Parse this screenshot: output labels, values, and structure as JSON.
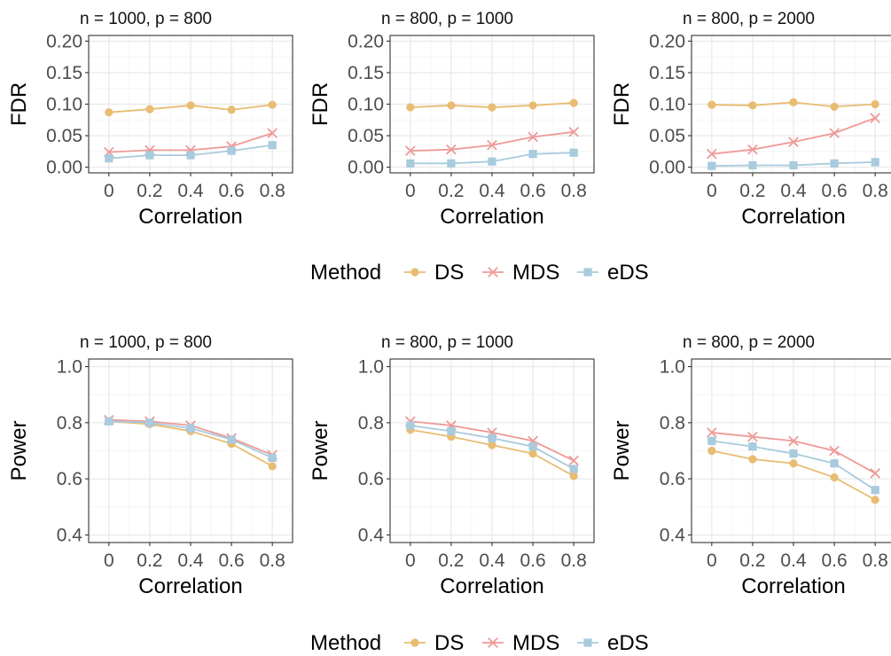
{
  "legend": {
    "title": "Method",
    "entries": [
      {
        "name": "DS",
        "color": "#E8BC72",
        "marker": "circle"
      },
      {
        "name": "MDS",
        "color": "#EE9A98",
        "marker": "cross"
      },
      {
        "name": "eDS",
        "color": "#A8CBDD",
        "marker": "square"
      }
    ]
  },
  "chart_data": [
    {
      "type": "line",
      "title": "n = 1000, p = 800",
      "xlabel": "Correlation",
      "ylabel": "FDR",
      "x": [
        0,
        0.2,
        0.4,
        0.6,
        0.8
      ],
      "x_tick_labels": [
        "0",
        "0.2",
        "0.4",
        "0.6",
        "0.8"
      ],
      "ylim": [
        0,
        0.2
      ],
      "y_ticks": [
        0,
        0.05,
        0.1,
        0.15,
        0.2
      ],
      "y_tick_labels": [
        "0.00",
        "0.05",
        "0.10",
        "0.15",
        "0.20"
      ],
      "grid": true,
      "series": [
        {
          "name": "DS",
          "values": [
            0.087,
            0.092,
            0.098,
            0.091,
            0.099
          ]
        },
        {
          "name": "MDS",
          "values": [
            0.024,
            0.027,
            0.027,
            0.033,
            0.054
          ]
        },
        {
          "name": "eDS",
          "values": [
            0.014,
            0.019,
            0.019,
            0.026,
            0.035
          ]
        }
      ]
    },
    {
      "type": "line",
      "title": "n = 800, p = 1000",
      "xlabel": "Correlation",
      "ylabel": "FDR",
      "x": [
        0,
        0.2,
        0.4,
        0.6,
        0.8
      ],
      "x_tick_labels": [
        "0",
        "0.2",
        "0.4",
        "0.6",
        "0.8"
      ],
      "ylim": [
        0,
        0.2
      ],
      "y_ticks": [
        0,
        0.05,
        0.1,
        0.15,
        0.2
      ],
      "y_tick_labels": [
        "0.00",
        "0.05",
        "0.10",
        "0.15",
        "0.20"
      ],
      "grid": true,
      "series": [
        {
          "name": "DS",
          "values": [
            0.095,
            0.098,
            0.095,
            0.098,
            0.102
          ]
        },
        {
          "name": "MDS",
          "values": [
            0.026,
            0.028,
            0.035,
            0.048,
            0.056
          ]
        },
        {
          "name": "eDS",
          "values": [
            0.006,
            0.006,
            0.009,
            0.021,
            0.023
          ]
        }
      ]
    },
    {
      "type": "line",
      "title": "n = 800, p = 2000",
      "xlabel": "Correlation",
      "ylabel": "FDR",
      "x": [
        0,
        0.2,
        0.4,
        0.6,
        0.8
      ],
      "x_tick_labels": [
        "0",
        "0.2",
        "0.4",
        "0.6",
        "0.8"
      ],
      "ylim": [
        0,
        0.2
      ],
      "y_ticks": [
        0,
        0.05,
        0.1,
        0.15,
        0.2
      ],
      "y_tick_labels": [
        "0.00",
        "0.05",
        "0.10",
        "0.15",
        "0.20"
      ],
      "grid": true,
      "series": [
        {
          "name": "DS",
          "values": [
            0.099,
            0.098,
            0.103,
            0.096,
            0.1
          ]
        },
        {
          "name": "MDS",
          "values": [
            0.021,
            0.028,
            0.04,
            0.054,
            0.078
          ]
        },
        {
          "name": "eDS",
          "values": [
            0.002,
            0.003,
            0.003,
            0.006,
            0.008
          ]
        }
      ]
    },
    {
      "type": "line",
      "title": "n = 1000, p = 800",
      "xlabel": "Correlation",
      "ylabel": "Power",
      "x": [
        0,
        0.2,
        0.4,
        0.6,
        0.8
      ],
      "x_tick_labels": [
        "0",
        "0.2",
        "0.4",
        "0.6",
        "0.8"
      ],
      "ylim": [
        0.4,
        1.0
      ],
      "y_ticks": [
        0.4,
        0.6,
        0.8,
        1.0
      ],
      "y_tick_labels": [
        "0.4",
        "0.6",
        "0.8",
        "1.0"
      ],
      "grid": true,
      "series": [
        {
          "name": "DS",
          "values": [
            0.805,
            0.795,
            0.77,
            0.725,
            0.645
          ]
        },
        {
          "name": "MDS",
          "values": [
            0.81,
            0.805,
            0.79,
            0.745,
            0.685
          ]
        },
        {
          "name": "eDS",
          "values": [
            0.805,
            0.8,
            0.78,
            0.74,
            0.675
          ]
        }
      ]
    },
    {
      "type": "line",
      "title": "n = 800, p = 1000",
      "xlabel": "Correlation",
      "ylabel": "Power",
      "x": [
        0,
        0.2,
        0.4,
        0.6,
        0.8
      ],
      "x_tick_labels": [
        "0",
        "0.2",
        "0.4",
        "0.6",
        "0.8"
      ],
      "ylim": [
        0.4,
        1.0
      ],
      "y_ticks": [
        0.4,
        0.6,
        0.8,
        1.0
      ],
      "y_tick_labels": [
        "0.4",
        "0.6",
        "0.8",
        "1.0"
      ],
      "grid": true,
      "series": [
        {
          "name": "DS",
          "values": [
            0.775,
            0.75,
            0.72,
            0.69,
            0.61
          ]
        },
        {
          "name": "MDS",
          "values": [
            0.805,
            0.79,
            0.765,
            0.735,
            0.665
          ]
        },
        {
          "name": "eDS",
          "values": [
            0.79,
            0.77,
            0.745,
            0.715,
            0.635
          ]
        }
      ]
    },
    {
      "type": "line",
      "title": "n = 800, p = 2000",
      "xlabel": "Correlation",
      "ylabel": "Power",
      "x": [
        0,
        0.2,
        0.4,
        0.6,
        0.8
      ],
      "x_tick_labels": [
        "0",
        "0.2",
        "0.4",
        "0.6",
        "0.8"
      ],
      "ylim": [
        0.4,
        1.0
      ],
      "y_ticks": [
        0.4,
        0.6,
        0.8,
        1.0
      ],
      "y_tick_labels": [
        "0.4",
        "0.6",
        "0.8",
        "1.0"
      ],
      "grid": true,
      "series": [
        {
          "name": "DS",
          "values": [
            0.7,
            0.67,
            0.655,
            0.605,
            0.525
          ]
        },
        {
          "name": "MDS",
          "values": [
            0.765,
            0.75,
            0.735,
            0.7,
            0.62
          ]
        },
        {
          "name": "eDS",
          "values": [
            0.735,
            0.715,
            0.69,
            0.655,
            0.56
          ]
        }
      ]
    }
  ]
}
